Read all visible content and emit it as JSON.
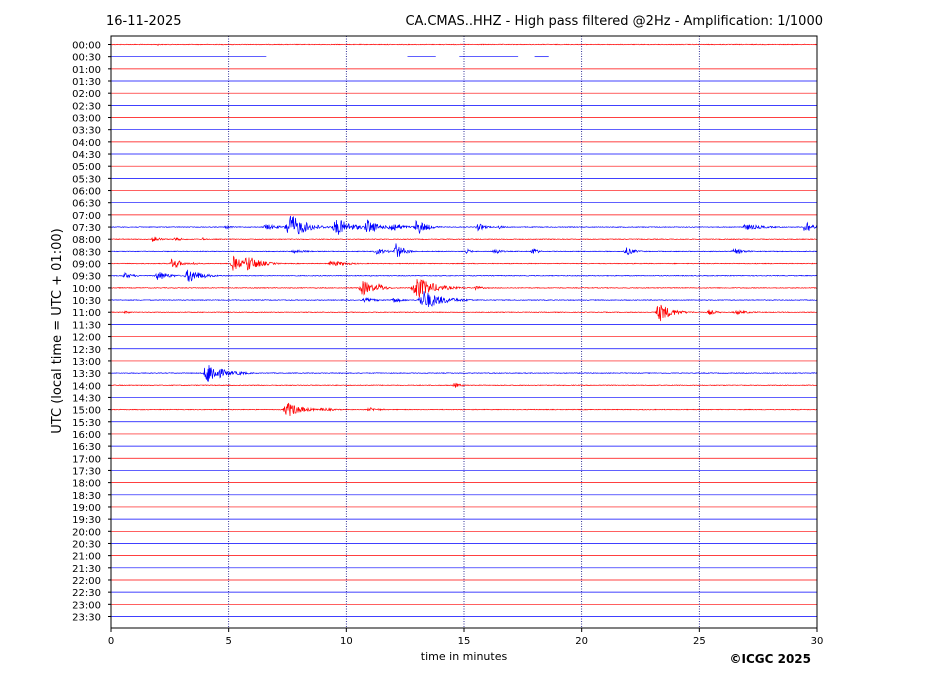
{
  "header": {
    "date": "16-11-2025",
    "title": "CA.CMAS..HHZ - High pass filtered @2Hz - Amplification: 1/1000"
  },
  "footer": {
    "copyright": "©ICGC 2025"
  },
  "chart_data": {
    "type": "line",
    "title": "CA.CMAS..HHZ - High pass filtered @2Hz - Amplification: 1/1000",
    "xlabel": "time in minutes",
    "ylabel": "UTC (local time = UTC + 01:00)",
    "xlim": [
      0,
      30
    ],
    "x_ticks": [
      0,
      5,
      10,
      15,
      20,
      25,
      30
    ],
    "x_gridlines": [
      5,
      10,
      15,
      20,
      25
    ],
    "row_labels": [
      "00:00",
      "00:30",
      "01:00",
      "01:30",
      "02:00",
      "02:30",
      "03:00",
      "03:30",
      "04:00",
      "04:30",
      "05:00",
      "05:30",
      "06:00",
      "06:30",
      "07:00",
      "07:30",
      "08:00",
      "08:30",
      "09:00",
      "09:30",
      "10:00",
      "10:30",
      "11:00",
      "11:30",
      "12:00",
      "12:30",
      "13:00",
      "13:30",
      "14:00",
      "14:30",
      "15:00",
      "15:30",
      "16:00",
      "16:30",
      "17:00",
      "17:30",
      "18:00",
      "18:30",
      "19:00",
      "19:30",
      "20:00",
      "20:30",
      "21:00",
      "21:30",
      "22:00",
      "22:30",
      "23:00",
      "23:30"
    ],
    "colors": {
      "even_row": "#ff0000",
      "odd_row": "#0000ff",
      "grid": "#000080"
    },
    "events": [
      {
        "row": "00:00",
        "t": 2.0,
        "amp": 1.0,
        "width": 0.2
      },
      {
        "row": "07:30",
        "t": 4.9,
        "amp": 2.0,
        "width": 0.4
      },
      {
        "row": "07:30",
        "t": 6.6,
        "amp": 3.0,
        "width": 0.9
      },
      {
        "row": "07:30",
        "t": 7.6,
        "amp": 14.0,
        "width": 1.0
      },
      {
        "row": "07:30",
        "t": 9.6,
        "amp": 9.0,
        "width": 1.0
      },
      {
        "row": "07:30",
        "t": 10.9,
        "amp": 8.0,
        "width": 0.7
      },
      {
        "row": "07:30",
        "t": 11.9,
        "amp": 6.0,
        "width": 0.7
      },
      {
        "row": "07:30",
        "t": 13.0,
        "amp": 9.0,
        "width": 0.6
      },
      {
        "row": "07:30",
        "t": 15.6,
        "amp": 4.0,
        "width": 0.5
      },
      {
        "row": "07:30",
        "t": 16.5,
        "amp": 2.0,
        "width": 0.3
      },
      {
        "row": "07:30",
        "t": 27.0,
        "amp": 3.0,
        "width": 1.3
      },
      {
        "row": "07:30",
        "t": 29.5,
        "amp": 9.0,
        "width": 0.4
      },
      {
        "row": "08:00",
        "t": 1.8,
        "amp": 4.0,
        "width": 0.4
      },
      {
        "row": "08:00",
        "t": 2.7,
        "amp": 2.0,
        "width": 0.6
      },
      {
        "row": "08:00",
        "t": 3.9,
        "amp": 2.0,
        "width": 0.2
      },
      {
        "row": "08:30",
        "t": 7.8,
        "amp": 2.0,
        "width": 0.8
      },
      {
        "row": "08:30",
        "t": 11.3,
        "amp": 3.0,
        "width": 0.7
      },
      {
        "row": "08:30",
        "t": 12.1,
        "amp": 9.0,
        "width": 0.5
      },
      {
        "row": "08:30",
        "t": 15.1,
        "amp": 3.0,
        "width": 0.3
      },
      {
        "row": "08:30",
        "t": 16.3,
        "amp": 4.0,
        "width": 0.4
      },
      {
        "row": "08:30",
        "t": 17.9,
        "amp": 5.0,
        "width": 0.3
      },
      {
        "row": "08:30",
        "t": 21.9,
        "amp": 4.0,
        "width": 0.6
      },
      {
        "row": "08:30",
        "t": 26.5,
        "amp": 3.0,
        "width": 0.7
      },
      {
        "row": "09:00",
        "t": 2.6,
        "amp": 7.0,
        "width": 0.5
      },
      {
        "row": "09:00",
        "t": 3.5,
        "amp": 2.0,
        "width": 0.3
      },
      {
        "row": "09:00",
        "t": 5.2,
        "amp": 8.0,
        "width": 0.6
      },
      {
        "row": "09:00",
        "t": 5.8,
        "amp": 9.0,
        "width": 0.8
      },
      {
        "row": "09:00",
        "t": 9.4,
        "amp": 3.0,
        "width": 1.0
      },
      {
        "row": "09:30",
        "t": 0.6,
        "amp": 3.0,
        "width": 0.6
      },
      {
        "row": "09:30",
        "t": 2.0,
        "amp": 5.0,
        "width": 0.7
      },
      {
        "row": "09:30",
        "t": 3.3,
        "amp": 8.0,
        "width": 0.8
      },
      {
        "row": "10:00",
        "t": 10.7,
        "amp": 8.0,
        "width": 0.8
      },
      {
        "row": "10:00",
        "t": 11.4,
        "amp": 5.0,
        "width": 0.4
      },
      {
        "row": "10:00",
        "t": 13.0,
        "amp": 12.0,
        "width": 1.1
      },
      {
        "row": "10:00",
        "t": 15.5,
        "amp": 2.0,
        "width": 0.6
      },
      {
        "row": "10:30",
        "t": 10.8,
        "amp": 2.0,
        "width": 1.0
      },
      {
        "row": "10:30",
        "t": 13.3,
        "amp": 10.0,
        "width": 1.2
      },
      {
        "row": "10:30",
        "t": 12.0,
        "amp": 3.0,
        "width": 0.6
      },
      {
        "row": "11:00",
        "t": 0.6,
        "amp": 2.0,
        "width": 0.3
      },
      {
        "row": "11:00",
        "t": 23.3,
        "amp": 10.0,
        "width": 0.8
      },
      {
        "row": "11:00",
        "t": 25.4,
        "amp": 3.0,
        "width": 0.5
      },
      {
        "row": "11:00",
        "t": 26.6,
        "amp": 2.0,
        "width": 1.0
      },
      {
        "row": "13:30",
        "t": 4.1,
        "amp": 12.0,
        "width": 0.9
      },
      {
        "row": "13:30",
        "t": 5.4,
        "amp": 2.0,
        "width": 0.8
      },
      {
        "row": "14:00",
        "t": 14.6,
        "amp": 3.0,
        "width": 0.4
      },
      {
        "row": "15:00",
        "t": 7.5,
        "amp": 8.0,
        "width": 0.9
      },
      {
        "row": "15:00",
        "t": 9.0,
        "amp": 2.0,
        "width": 0.8
      },
      {
        "row": "15:00",
        "t": 11.0,
        "amp": 2.0,
        "width": 0.8
      }
    ],
    "gaps": [
      {
        "row": "00:30",
        "segments": [
          [
            0.0,
            6.6
          ],
          [
            12.6,
            13.8
          ],
          [
            14.8,
            17.3
          ],
          [
            18.0,
            18.6
          ]
        ]
      }
    ]
  }
}
